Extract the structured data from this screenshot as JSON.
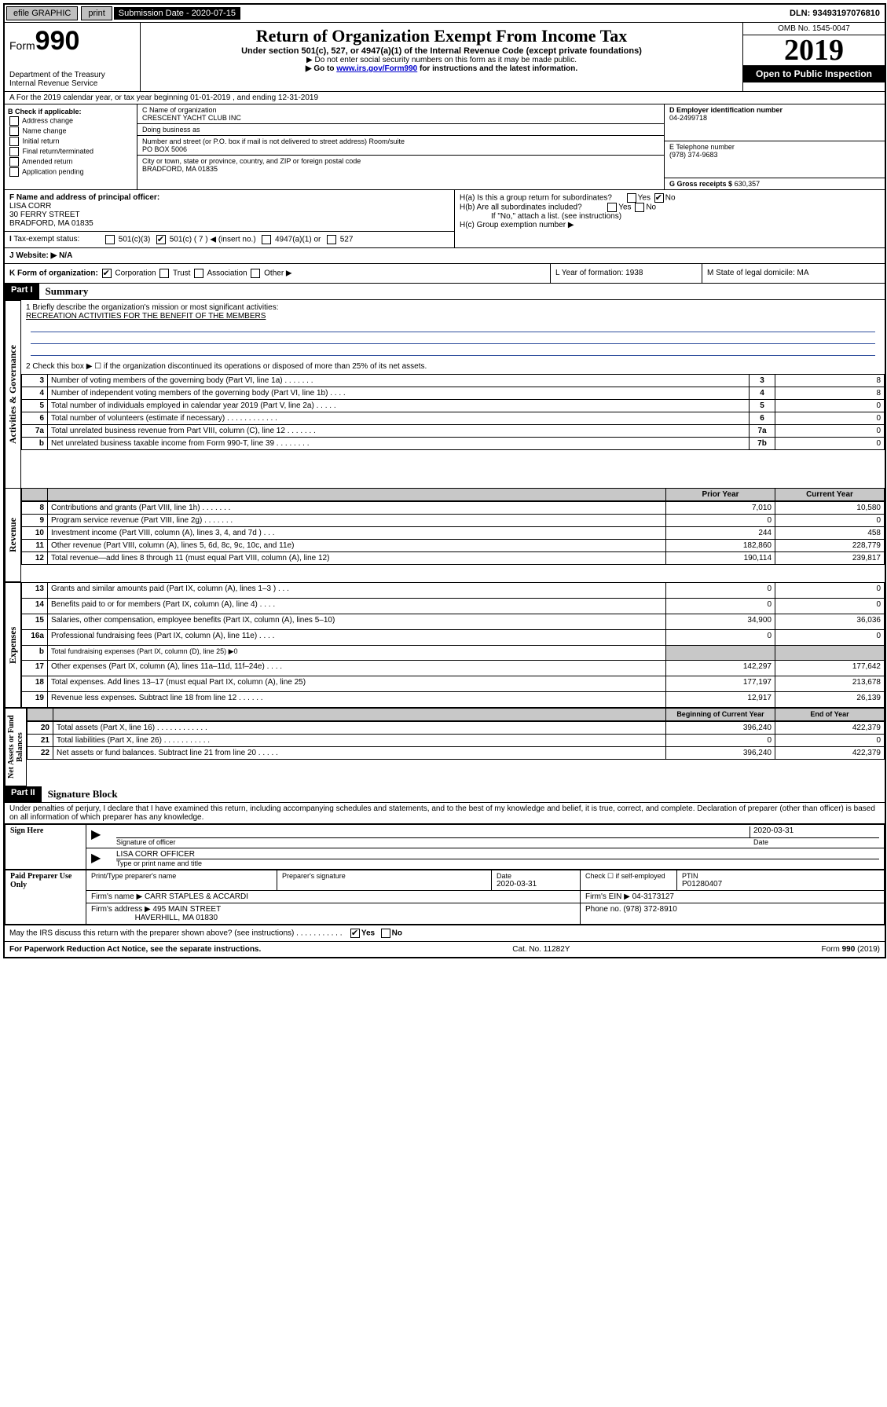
{
  "topbar": {
    "efile": "efile GRAPHIC",
    "print": "print",
    "subdate_label": "Submission Date - 2020-07-15",
    "dln": "DLN: 93493197076810"
  },
  "header": {
    "form_label": "Form",
    "form_num": "990",
    "dept": "Department of the Treasury\nInternal Revenue Service",
    "title": "Return of Organization Exempt From Income Tax",
    "sub": "Under section 501(c), 527, or 4947(a)(1) of the Internal Revenue Code (except private foundations)",
    "note1": "▶ Do not enter social security numbers on this form as it may be made public.",
    "note2_pre": "▶ Go to ",
    "note2_link": "www.irs.gov/Form990",
    "note2_post": " for instructions and the latest information.",
    "omb": "OMB No. 1545-0047",
    "year": "2019",
    "open": "Open to Public Inspection"
  },
  "rowA": "A For the 2019 calendar year, or tax year beginning 01-01-2019   , and ending 12-31-2019",
  "B": {
    "label": "B Check if applicable:",
    "items": [
      "Address change",
      "Name change",
      "Initial return",
      "Final return/terminated",
      "Amended return",
      "Application pending"
    ]
  },
  "C": {
    "label": "C Name of organization",
    "value": "CRESCENT YACHT CLUB INC",
    "dba": "Doing business as",
    "addr_label": "Number and street (or P.O. box if mail is not delivered to street address)        Room/suite",
    "addr": "PO BOX 5006",
    "city_label": "City or town, state or province, country, and ZIP or foreign postal code",
    "city": "BRADFORD, MA  01835"
  },
  "D": {
    "label": "D Employer identification number",
    "value": "04-2499718"
  },
  "E": {
    "label": "E Telephone number",
    "value": "(978) 374-9683"
  },
  "G": {
    "label": "G Gross receipts $",
    "value": "630,357"
  },
  "F": {
    "label": "F  Name and address of principal officer:",
    "name": "LISA CORR",
    "addr1": "30 FERRY STREET",
    "addr2": "BRADFORD, MA  01835"
  },
  "H": {
    "a": "H(a)  Is this a group return for subordinates?",
    "b": "H(b)  Are all subordinates included?",
    "b_note": "If \"No,\" attach a list. (see instructions)",
    "c": "H(c)  Group exemption number ▶"
  },
  "I": {
    "label": "Tax-exempt status:",
    "opt1": "501(c)(3)",
    "opt2": "501(c) ( 7 ) ◀ (insert no.)",
    "opt3": "4947(a)(1) or",
    "opt4": "527"
  },
  "J": "J   Website: ▶  N/A",
  "K": "K Form of organization:",
  "K_opts": [
    "Corporation",
    "Trust",
    "Association",
    "Other ▶"
  ],
  "L": "L Year of formation: 1938",
  "M": "M State of legal domicile: MA",
  "partI": {
    "hdr": "Part I",
    "title": "Summary",
    "q1": "1  Briefly describe the organization's mission or most significant activities:",
    "q1_ans": "RECREATION ACTIVITIES FOR THE BENEFIT OF THE MEMBERS",
    "q2": "2  Check this box ▶ ☐  if the organization discontinued its operations or disposed of more than 25% of its net assets."
  },
  "sections": {
    "gov": "Activities & Governance",
    "rev": "Revenue",
    "exp": "Expenses",
    "net": "Net Assets or Fund Balances"
  },
  "cols": {
    "prior": "Prior Year",
    "current": "Current Year",
    "beg": "Beginning of Current Year",
    "end": "End of Year"
  },
  "lines_gov": [
    {
      "n": "3",
      "d": "Number of voting members of the governing body (Part VI, line 1a) . . . . . . .",
      "b": "3",
      "v": "8"
    },
    {
      "n": "4",
      "d": "Number of independent voting members of the governing body (Part VI, line 1b) . . . .",
      "b": "4",
      "v": "8"
    },
    {
      "n": "5",
      "d": "Total number of individuals employed in calendar year 2019 (Part V, line 2a) . . . . .",
      "b": "5",
      "v": "0"
    },
    {
      "n": "6",
      "d": "Total number of volunteers (estimate if necessary) . . . . . . . . . . . .",
      "b": "6",
      "v": "0"
    },
    {
      "n": "7a",
      "d": "Total unrelated business revenue from Part VIII, column (C), line 12 . . . . . . .",
      "b": "7a",
      "v": "0"
    },
    {
      "n": "b",
      "d": "Net unrelated business taxable income from Form 990-T, line 39 . . . . . . . .",
      "b": "7b",
      "v": "0"
    }
  ],
  "lines_rev": [
    {
      "n": "8",
      "d": "Contributions and grants (Part VIII, line 1h) . . . . . . .",
      "p": "7,010",
      "c": "10,580"
    },
    {
      "n": "9",
      "d": "Program service revenue (Part VIII, line 2g) . . . . . . .",
      "p": "0",
      "c": "0"
    },
    {
      "n": "10",
      "d": "Investment income (Part VIII, column (A), lines 3, 4, and 7d ) . . .",
      "p": "244",
      "c": "458"
    },
    {
      "n": "11",
      "d": "Other revenue (Part VIII, column (A), lines 5, 6d, 8c, 9c, 10c, and 11e)",
      "p": "182,860",
      "c": "228,779"
    },
    {
      "n": "12",
      "d": "Total revenue—add lines 8 through 11 (must equal Part VIII, column (A), line 12)",
      "p": "190,114",
      "c": "239,817"
    }
  ],
  "lines_exp": [
    {
      "n": "13",
      "d": "Grants and similar amounts paid (Part IX, column (A), lines 1–3 ) . . .",
      "p": "0",
      "c": "0"
    },
    {
      "n": "14",
      "d": "Benefits paid to or for members (Part IX, column (A), line 4) . . . .",
      "p": "0",
      "c": "0"
    },
    {
      "n": "15",
      "d": "Salaries, other compensation, employee benefits (Part IX, column (A), lines 5–10)",
      "p": "34,900",
      "c": "36,036"
    },
    {
      "n": "16a",
      "d": "Professional fundraising fees (Part IX, column (A), line 11e) . . . .",
      "p": "0",
      "c": "0"
    },
    {
      "n": "b",
      "d": "Total fundraising expenses (Part IX, column (D), line 25) ▶0",
      "p": "",
      "c": ""
    },
    {
      "n": "17",
      "d": "Other expenses (Part IX, column (A), lines 11a–11d, 11f–24e) . . . .",
      "p": "142,297",
      "c": "177,642"
    },
    {
      "n": "18",
      "d": "Total expenses. Add lines 13–17 (must equal Part IX, column (A), line 25)",
      "p": "177,197",
      "c": "213,678"
    },
    {
      "n": "19",
      "d": "Revenue less expenses. Subtract line 18 from line 12 . . . . . .",
      "p": "12,917",
      "c": "26,139"
    }
  ],
  "lines_net": [
    {
      "n": "20",
      "d": "Total assets (Part X, line 16) . . . . . . . . . . . .",
      "p": "396,240",
      "c": "422,379"
    },
    {
      "n": "21",
      "d": "Total liabilities (Part X, line 26) . . . . . . . . . . .",
      "p": "0",
      "c": "0"
    },
    {
      "n": "22",
      "d": "Net assets or fund balances. Subtract line 21 from line 20 . . . . .",
      "p": "396,240",
      "c": "422,379"
    }
  ],
  "partII": {
    "hdr": "Part II",
    "title": "Signature Block",
    "decl": "Under penalties of perjury, I declare that I have examined this return, including accompanying schedules and statements, and to the best of my knowledge and belief, it is true, correct, and complete. Declaration of preparer (other than officer) is based on all information of which preparer has any knowledge."
  },
  "sign": {
    "here": "Sign Here",
    "sig_officer": "Signature of officer",
    "date_label": "Date",
    "date": "2020-03-31",
    "name": "LISA CORR OFFICER",
    "name_label": "Type or print name and title"
  },
  "paid": {
    "side": "Paid Preparer Use Only",
    "h1": "Print/Type preparer's name",
    "h2": "Preparer's signature",
    "h3": "Date",
    "h4": "Check ☐ if self-employed",
    "h5": "PTIN",
    "date": "2020-03-31",
    "ptin": "P01280407",
    "firm_label": "Firm's name    ▶",
    "firm": "CARR STAPLES & ACCARDI",
    "ein_label": "Firm's EIN ▶",
    "ein": "04-3173127",
    "addr_label": "Firm's address ▶",
    "addr1": "495 MAIN STREET",
    "addr2": "HAVERHILL, MA  01830",
    "phone_label": "Phone no.",
    "phone": "(978) 372-8910"
  },
  "discuss": "May the IRS discuss this return with the preparer shown above? (see instructions)  . . . . . . . . . . .",
  "footer": {
    "pra": "For Paperwork Reduction Act Notice, see the separate instructions.",
    "cat": "Cat. No. 11282Y",
    "form": "Form 990 (2019)"
  }
}
